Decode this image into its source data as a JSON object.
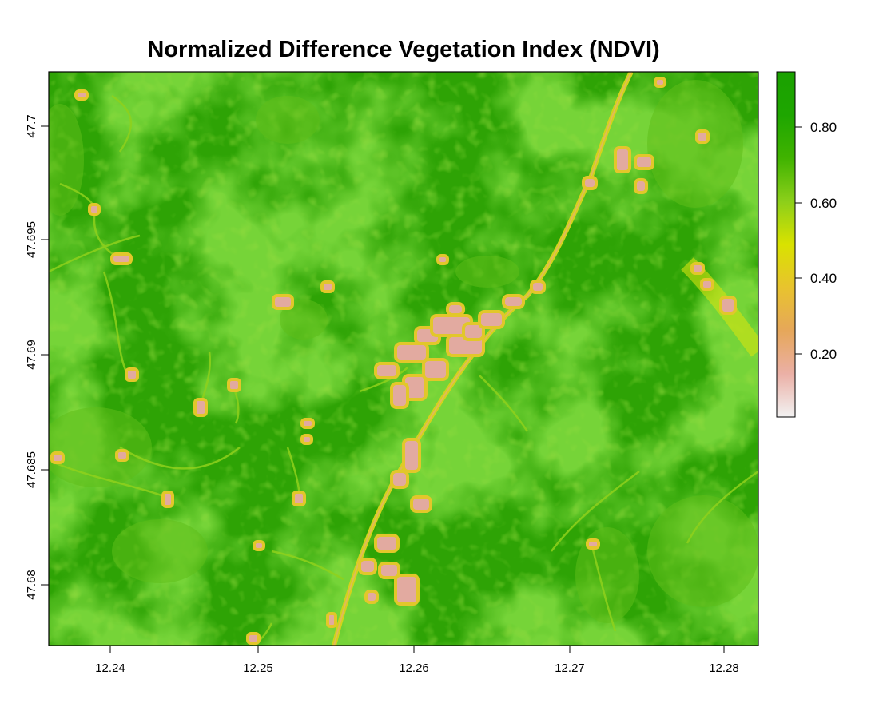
{
  "title": "Normalized Difference Vegetation Index (NDVI)",
  "x_axis": {
    "ticks": [
      "12.24",
      "12.25",
      "12.26",
      "12.27",
      "12.28"
    ]
  },
  "y_axis": {
    "ticks": [
      "47.7",
      "47.695",
      "47.69",
      "47.685",
      "47.68"
    ]
  },
  "legend": {
    "ticks": [
      "0.80",
      "0.60",
      "0.40",
      "0.20"
    ],
    "colors": [
      "#f2f2f2",
      "#ebb0a6",
      "#e6a75a",
      "#e8c32e",
      "#d9e200",
      "#8ccf1a",
      "#40b300",
      "#1ea600",
      "#1aa100"
    ]
  },
  "colors": {
    "vegetation_dark": "#1f9e06",
    "vegetation_mid": "#33ab00",
    "vegetation_light": "#63bf1c",
    "road": "#d8d51a",
    "built_up": "#e0a8a0",
    "built_up_edge": "#e2c72a"
  }
}
